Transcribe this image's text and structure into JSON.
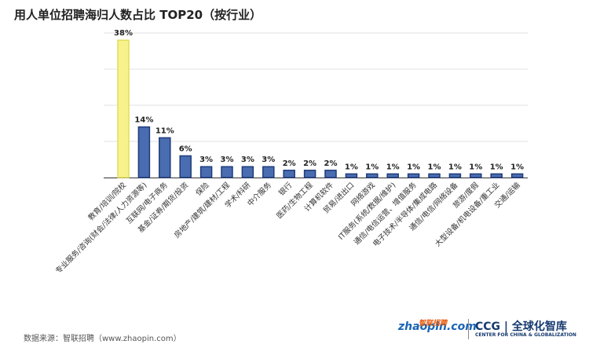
{
  "page": {
    "title": "用人单位招聘海归人数占比 TOP20（按行业）",
    "source": "数据来源：智联招聘（www.zhaopin.com）",
    "logo_zhaopin_en": "zhaopin.com",
    "logo_zhaopin_cn": "智联招聘",
    "logo_ccg_main": "CCG | 全球化智库",
    "logo_ccg_sub": "CENTER FOR CHINA & GLOBALIZATION"
  },
  "colors": {
    "highlight_fill": "#f7f28c",
    "highlight_stroke": "#e3dd5c",
    "bar_fill": "#4a6cb0",
    "bar_stroke": "#1f3c7a",
    "axis": "#333333",
    "gridline": "#e2e2e2"
  },
  "chart_data": {
    "type": "bar",
    "title": "用人单位招聘海归人数占比 TOP20（按行业）",
    "xlabel": "",
    "ylabel": "",
    "ylim": [
      0,
      40
    ],
    "grid": "horizontal",
    "categories": [
      "教育/培训/院校",
      "专业服务/咨询(财会/法律/人力资源等)",
      "互联网/电子商务",
      "基金/证券/期货/投资",
      "保险",
      "房地产/建筑/建材/工程",
      "学术/科研",
      "中介服务",
      "银行",
      "医药/生物工程",
      "计算机软件",
      "贸易/进出口",
      "网络游戏",
      "IT服务(系统/数据/维护)",
      "通信/电信运营、增值服务",
      "电子技术/半导体/集成电路",
      "通信/电信/网络设备",
      "旅游/度假",
      "大型设备/机电设备/重工业",
      "交通/运输"
    ],
    "values": [
      38,
      14,
      11,
      6,
      3,
      3,
      3,
      3,
      2,
      2,
      2,
      1,
      1,
      1,
      1,
      1,
      1,
      1,
      1,
      1
    ],
    "data_labels": [
      "38%",
      "14%",
      "11%",
      "6%",
      "3%",
      "3%",
      "3%",
      "3%",
      "2%",
      "2%",
      "2%",
      "1%",
      "1%",
      "1%",
      "1%",
      "1%",
      "1%",
      "1%",
      "1%",
      "1%"
    ]
  }
}
